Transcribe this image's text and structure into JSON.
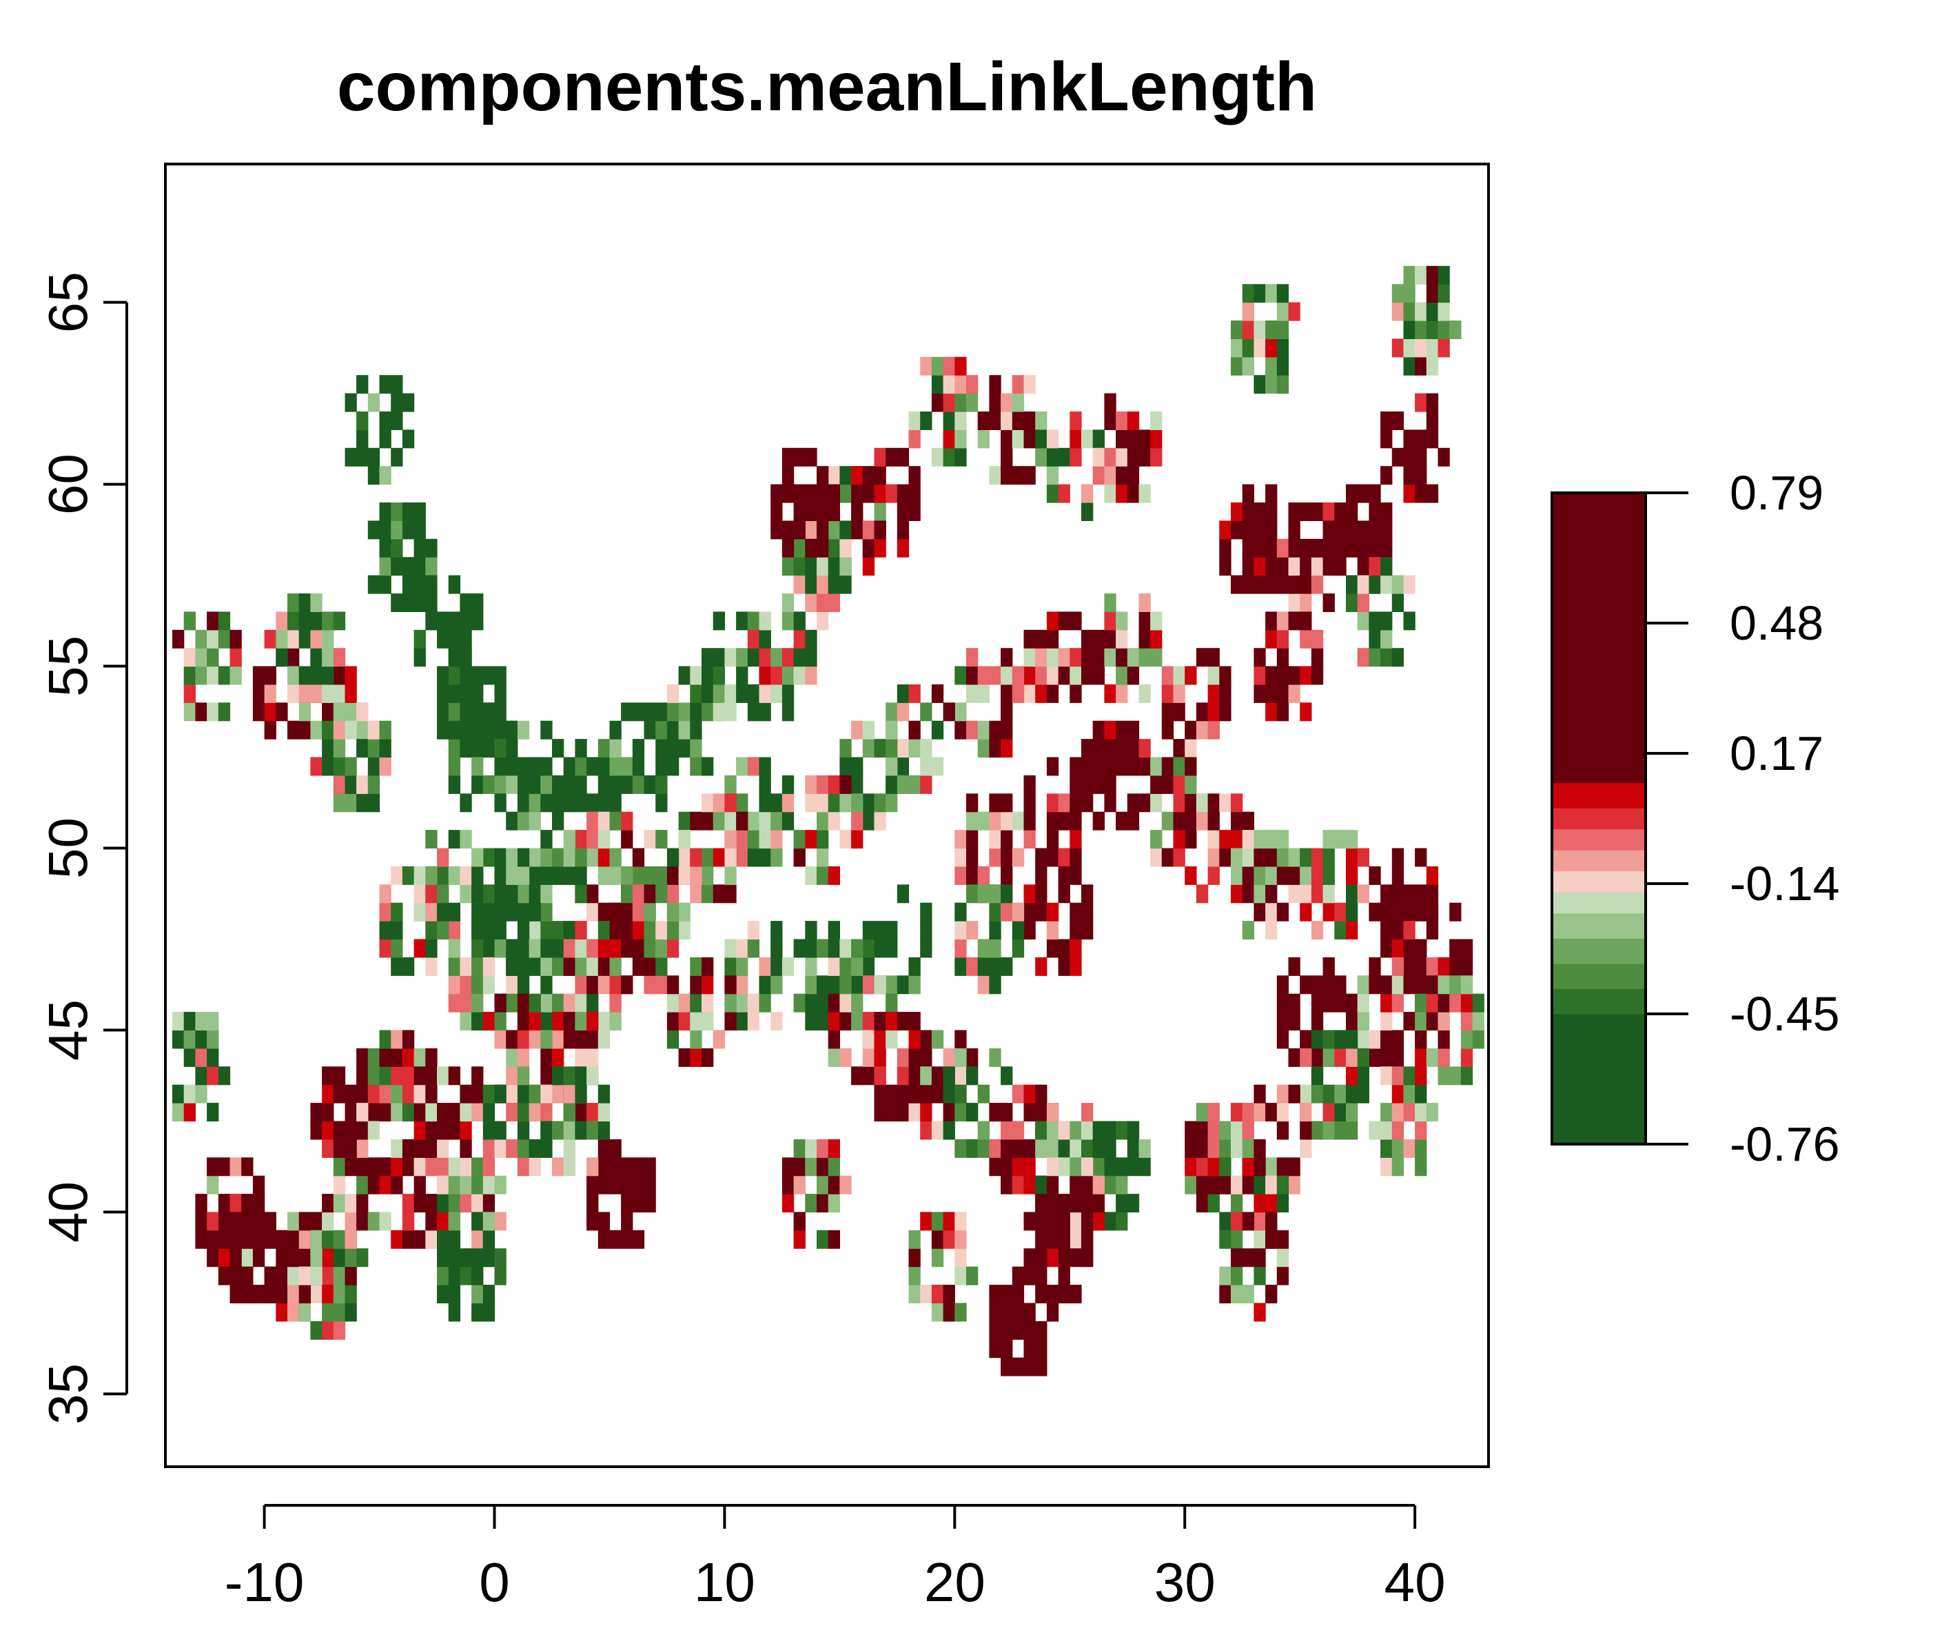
{
  "chart_data": {
    "type": "heatmap",
    "title": "components.meanLinkLength",
    "xlabel": "",
    "ylabel": "",
    "xlim": [
      -14.3,
      43.2
    ],
    "ylim": [
      33,
      68.8
    ],
    "x_ticks": [
      -10,
      0,
      10,
      20,
      30,
      40
    ],
    "y_ticks": [
      35,
      40,
      45,
      50,
      55,
      60,
      65
    ],
    "colorbar": {
      "range": [
        -0.76,
        0.79
      ],
      "ticks": [
        0.79,
        0.48,
        0.17,
        -0.14,
        -0.45,
        -0.76
      ],
      "tick_labels": [
        "0.79",
        "0.48",
        "0.17",
        "-0.14",
        "-0.45",
        "-0.76"
      ],
      "bands": [
        {
          "from": -0.76,
          "to": -0.45,
          "color": "#1a5c1f"
        },
        {
          "from": -0.45,
          "to": -0.39,
          "color": "#2e7327"
        },
        {
          "from": -0.39,
          "to": -0.33,
          "color": "#4e8d3f"
        },
        {
          "from": -0.33,
          "to": -0.27,
          "color": "#6fa65e"
        },
        {
          "from": -0.27,
          "to": -0.21,
          "color": "#98c48c"
        },
        {
          "from": -0.21,
          "to": -0.16,
          "color": "#c3dcb7"
        },
        {
          "from": -0.16,
          "to": -0.11,
          "color": "#f5cfc4"
        },
        {
          "from": -0.11,
          "to": -0.06,
          "color": "#f09e96"
        },
        {
          "from": -0.06,
          "to": -0.01,
          "color": "#e8676a"
        },
        {
          "from": -0.01,
          "to": 0.04,
          "color": "#de2f37"
        },
        {
          "from": 0.04,
          "to": 0.1,
          "color": "#cd0209"
        },
        {
          "from": 0.1,
          "to": 0.79,
          "color": "#67000d"
        }
      ]
    },
    "regions": [
      {
        "lon": -5.6,
        "lat": 61.5,
        "value": -0.55
      },
      {
        "lon": -4.2,
        "lat": 57.6,
        "value": -0.6
      },
      {
        "lon": -2.5,
        "lat": 56.0,
        "value": -0.7
      },
      {
        "lon": -1.5,
        "lat": 53.8,
        "value": -0.65
      },
      {
        "lon": -1.0,
        "lat": 52.5,
        "value": -0.6
      },
      {
        "lon": 1.0,
        "lat": 52.0,
        "value": -0.55
      },
      {
        "lon": -7.5,
        "lat": 53.5,
        "value": 0.05
      },
      {
        "lon": -6.5,
        "lat": 52.5,
        "value": -0.3
      },
      {
        "lon": -9.5,
        "lat": 54.5,
        "value": 0.2
      },
      {
        "lon": -8.5,
        "lat": 55.5,
        "value": -0.4
      },
      {
        "lon": 3.5,
        "lat": 51.5,
        "value": -0.62
      },
      {
        "lon": 6.0,
        "lat": 52.5,
        "value": -0.58
      },
      {
        "lon": 8.0,
        "lat": 53.5,
        "value": -0.45
      },
      {
        "lon": 10.0,
        "lat": 54.8,
        "value": -0.5
      },
      {
        "lon": 12.0,
        "lat": 55.0,
        "value": -0.3
      },
      {
        "lon": 13.5,
        "lat": 57.5,
        "value": -0.35
      },
      {
        "lon": 15.0,
        "lat": 58.8,
        "value": -0.2
      },
      {
        "lon": 13.0,
        "lat": 59.3,
        "value": 0.5
      },
      {
        "lon": 16.5,
        "lat": 59.3,
        "value": 0.3
      },
      {
        "lon": 19.0,
        "lat": 61.8,
        "value": -0.2
      },
      {
        "lon": 22.0,
        "lat": 61.2,
        "value": 0.1
      },
      {
        "lon": 24.5,
        "lat": 60.5,
        "value": -0.3
      },
      {
        "lon": 27.0,
        "lat": 61.0,
        "value": 0.15
      },
      {
        "lon": 33.0,
        "lat": 64.0,
        "value": -0.25
      },
      {
        "lon": 40.0,
        "lat": 64.2,
        "value": -0.2
      },
      {
        "lon": 39.5,
        "lat": 60.6,
        "value": 0.35
      },
      {
        "lon": 32.5,
        "lat": 58.5,
        "value": 0.4
      },
      {
        "lon": 35.0,
        "lat": 58.0,
        "value": 0.2
      },
      {
        "lon": 37.0,
        "lat": 58.5,
        "value": 0.45
      },
      {
        "lon": 38.0,
        "lat": 56.5,
        "value": -0.35
      },
      {
        "lon": 34.0,
        "lat": 55.0,
        "value": 0.25
      },
      {
        "lon": 30.0,
        "lat": 54.0,
        "value": 0.1
      },
      {
        "lon": 27.0,
        "lat": 55.5,
        "value": 0.05
      },
      {
        "lon": 24.0,
        "lat": 55.0,
        "value": 0.15
      },
      {
        "lon": 21.0,
        "lat": 54.0,
        "value": -0.05
      },
      {
        "lon": 18.0,
        "lat": 53.0,
        "value": -0.2
      },
      {
        "lon": 16.0,
        "lat": 51.8,
        "value": -0.4
      },
      {
        "lon": 14.0,
        "lat": 50.5,
        "value": -0.15
      },
      {
        "lon": 11.0,
        "lat": 51.0,
        "value": -0.35
      },
      {
        "lon": 9.0,
        "lat": 50.0,
        "value": -0.1
      },
      {
        "lon": 7.0,
        "lat": 49.0,
        "value": -0.2
      },
      {
        "lon": 4.5,
        "lat": 49.5,
        "value": -0.05
      },
      {
        "lon": 2.0,
        "lat": 49.0,
        "value": -0.5
      },
      {
        "lon": 0.0,
        "lat": 48.5,
        "value": -0.45
      },
      {
        "lon": -2.5,
        "lat": 48.8,
        "value": -0.35
      },
      {
        "lon": -4.0,
        "lat": 48.0,
        "value": -0.25
      },
      {
        "lon": -1.0,
        "lat": 46.5,
        "value": -0.3
      },
      {
        "lon": 1.5,
        "lat": 46.0,
        "value": -0.5
      },
      {
        "lon": 4.0,
        "lat": 46.5,
        "value": -0.15
      },
      {
        "lon": 6.0,
        "lat": 47.5,
        "value": -0.05
      },
      {
        "lon": 3.0,
        "lat": 44.0,
        "value": 0.05
      },
      {
        "lon": 0.5,
        "lat": 44.2,
        "value": -0.1
      },
      {
        "lon": 21.0,
        "lat": 50.0,
        "value": 0.1
      },
      {
        "lon": 24.0,
        "lat": 51.0,
        "value": 0.3
      },
      {
        "lon": 26.5,
        "lat": 52.0,
        "value": 0.35
      },
      {
        "lon": 29.0,
        "lat": 51.0,
        "value": 0.0
      },
      {
        "lon": 31.0,
        "lat": 50.0,
        "value": 0.15
      },
      {
        "lon": 33.0,
        "lat": 49.0,
        "value": 0.05
      },
      {
        "lon": 36.0,
        "lat": 49.0,
        "value": -0.25
      },
      {
        "lon": 39.0,
        "lat": 48.5,
        "value": 0.4
      },
      {
        "lon": 40.5,
        "lat": 47.0,
        "value": 0.3
      },
      {
        "lon": 35.0,
        "lat": 45.5,
        "value": 0.45
      },
      {
        "lon": 38.0,
        "lat": 45.5,
        "value": 0.1
      },
      {
        "lon": 41.0,
        "lat": 45.0,
        "value": -0.1
      },
      {
        "lon": 36.0,
        "lat": 43.5,
        "value": -0.3
      },
      {
        "lon": 39.0,
        "lat": 42.5,
        "value": -0.2
      },
      {
        "lon": 24.0,
        "lat": 48.0,
        "value": 0.25
      },
      {
        "lon": 21.0,
        "lat": 47.5,
        "value": -0.35
      },
      {
        "lon": 17.0,
        "lat": 47.5,
        "value": -0.5
      },
      {
        "lon": 14.0,
        "lat": 46.5,
        "value": -0.45
      },
      {
        "lon": 11.0,
        "lat": 46.2,
        "value": -0.3
      },
      {
        "lon": 8.5,
        "lat": 45.5,
        "value": -0.1
      },
      {
        "lon": 15.5,
        "lat": 45.0,
        "value": -0.1
      },
      {
        "lon": 17.0,
        "lat": 44.0,
        "value": 0.15
      },
      {
        "lon": 19.0,
        "lat": 43.5,
        "value": 0.05
      },
      {
        "lon": 20.5,
        "lat": 42.8,
        "value": -0.4
      },
      {
        "lon": 22.5,
        "lat": 42.0,
        "value": 0.2
      },
      {
        "lon": 24.5,
        "lat": 41.5,
        "value": -0.15
      },
      {
        "lon": 26.5,
        "lat": 41.0,
        "value": -0.5
      },
      {
        "lon": 24.5,
        "lat": 40.0,
        "value": 0.05
      },
      {
        "lon": 24.0,
        "lat": 38.8,
        "value": 0.5
      },
      {
        "lon": 19.0,
        "lat": 38.2,
        "value": -0.05
      },
      {
        "lon": 22.5,
        "lat": 37.0,
        "value": 0.6
      },
      {
        "lon": 13.5,
        "lat": 40.2,
        "value": -0.1
      },
      {
        "lon": 5.0,
        "lat": 40.2,
        "value": 0.5
      },
      {
        "lon": 31.0,
        "lat": 41.5,
        "value": -0.1
      },
      {
        "lon": 33.5,
        "lat": 41.8,
        "value": 0.05
      },
      {
        "lon": 32.5,
        "lat": 40.2,
        "value": -0.2
      },
      {
        "lon": 32.5,
        "lat": 38.2,
        "value": -0.1
      },
      {
        "lon": -13.0,
        "lat": 55.0,
        "value": -0.1
      },
      {
        "lon": -12.0,
        "lat": 40.0,
        "value": 0.1
      },
      {
        "lon": -11.0,
        "lat": 39.0,
        "value": 0.55
      },
      {
        "lon": -9.0,
        "lat": 38.5,
        "value": 0.1
      },
      {
        "lon": -7.5,
        "lat": 38.0,
        "value": -0.15
      },
      {
        "lon": -6.5,
        "lat": 40.5,
        "value": -0.05
      },
      {
        "lon": -4.0,
        "lat": 40.2,
        "value": 0.15
      },
      {
        "lon": -1.5,
        "lat": 39.8,
        "value": -0.2
      },
      {
        "lon": -7.0,
        "lat": 42.8,
        "value": 0.3
      },
      {
        "lon": -5.0,
        "lat": 43.2,
        "value": -0.1
      },
      {
        "lon": -2.5,
        "lat": 42.8,
        "value": 0.05
      },
      {
        "lon": -13.5,
        "lat": 44.0,
        "value": -0.3
      },
      {
        "lon": 0.5,
        "lat": 42.5,
        "value": -0.3
      },
      {
        "lon": 3.0,
        "lat": 42.3,
        "value": -0.4
      },
      {
        "lon": -1.5,
        "lat": 38.2,
        "value": -0.55
      }
    ]
  }
}
